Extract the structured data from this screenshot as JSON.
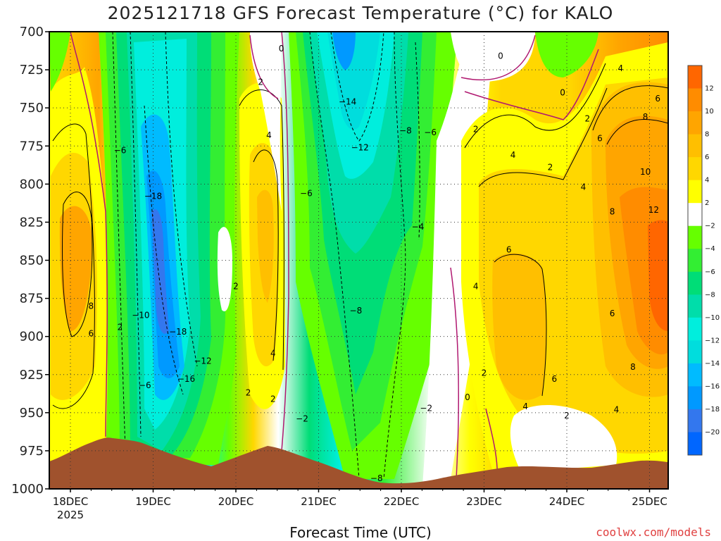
{
  "title": "2025121718 GFS Forecast Temperature (°C) for KALO",
  "xlabel": "Forecast Time (UTC)",
  "credit": "coolwx.com/models",
  "chart_data": {
    "type": "heatmap",
    "title": "2025121718 GFS Forecast Temperature (°C) for KALO",
    "xlabel": "Forecast Time (UTC)",
    "ylabel": "",
    "x_start": "2025-12-17 18Z",
    "x_ticks": [
      {
        "label": "18DEC",
        "year": "2025",
        "day": 18
      },
      {
        "label": "19DEC",
        "day": 19
      },
      {
        "label": "20DEC",
        "day": 20
      },
      {
        "label": "21DEC",
        "day": 21
      },
      {
        "label": "22DEC",
        "day": 22
      },
      {
        "label": "23DEC",
        "day": 23
      },
      {
        "label": "24DEC",
        "day": 24
      },
      {
        "label": "25DEC",
        "day": 25
      }
    ],
    "y_ticks": [
      "700",
      "725",
      "750",
      "775",
      "800",
      "825",
      "850",
      "875",
      "900",
      "925",
      "950",
      "975",
      "1000"
    ],
    "ylim": [
      1000,
      700
    ],
    "colorbar": {
      "labels": [
        "12",
        "10",
        "8",
        "6",
        "4",
        "2",
        "-2",
        "-4",
        "-6",
        "-8",
        "-10",
        "-12",
        "-14",
        "-16",
        "-18",
        "-20"
      ],
      "colors": [
        "#ff6600",
        "#ff8c00",
        "#ffa500",
        "#ffbf00",
        "#ffd700",
        "#ffff00",
        "#ffffff",
        "#66ff00",
        "#33ee33",
        "#00dd77",
        "#00ddaa",
        "#00eedd",
        "#00dddd",
        "#00bbff",
        "#0099ff",
        "#3377ee",
        "#0066ff"
      ]
    },
    "ground_color": "#a0522d",
    "contour_labels": [
      {
        "text": "0",
        "day": 20.55,
        "p": 711
      },
      {
        "text": "0",
        "day": 23.2,
        "p": 716
      },
      {
        "text": "0",
        "day": 23.95,
        "p": 740
      },
      {
        "text": "0",
        "day": 22.8,
        "p": 940
      },
      {
        "text": "2",
        "day": 20.3,
        "p": 733
      },
      {
        "text": "2",
        "day": 22.9,
        "p": 764
      },
      {
        "text": "2",
        "day": 23.8,
        "p": 789
      },
      {
        "text": "2",
        "day": 24.25,
        "p": 757
      },
      {
        "text": "2",
        "day": 18.6,
        "p": 894
      },
      {
        "text": "2",
        "day": 20.0,
        "p": 867
      },
      {
        "text": "2",
        "day": 20.15,
        "p": 937
      },
      {
        "text": "2",
        "day": 20.45,
        "p": 941
      },
      {
        "text": "2",
        "day": 23.0,
        "p": 924
      },
      {
        "text": "2",
        "day": 24.0,
        "p": 952
      },
      {
        "text": "-2",
        "day": 20.8,
        "p": 954
      },
      {
        "text": "-2",
        "day": 22.3,
        "p": 947
      },
      {
        "text": "4",
        "day": 20.4,
        "p": 768
      },
      {
        "text": "4",
        "day": 20.45,
        "p": 911
      },
      {
        "text": "4",
        "day": 23.35,
        "p": 781
      },
      {
        "text": "4",
        "day": 24.2,
        "p": 802
      },
      {
        "text": "4",
        "day": 22.9,
        "p": 867
      },
      {
        "text": "4",
        "day": 23.5,
        "p": 946
      },
      {
        "text": "4",
        "day": 24.6,
        "p": 948
      },
      {
        "text": "4",
        "day": 24.65,
        "p": 724
      },
      {
        "text": "6",
        "day": 18.25,
        "p": 898
      },
      {
        "text": "6",
        "day": 23.3,
        "p": 843
      },
      {
        "text": "6",
        "day": 23.85,
        "p": 928
      },
      {
        "text": "6",
        "day": 24.4,
        "p": 770
      },
      {
        "text": "6",
        "day": 24.55,
        "p": 885
      },
      {
        "text": "6",
        "day": 25.1,
        "p": 744
      },
      {
        "text": "8",
        "day": 18.25,
        "p": 880
      },
      {
        "text": "8",
        "day": 24.55,
        "p": 818
      },
      {
        "text": "8",
        "day": 24.8,
        "p": 920
      },
      {
        "text": "8",
        "day": 24.95,
        "p": 756
      },
      {
        "text": "10",
        "day": 24.95,
        "p": 792
      },
      {
        "text": "12",
        "day": 25.05,
        "p": 817
      },
      {
        "text": "-4",
        "day": 22.2,
        "p": 828
      },
      {
        "text": "-6",
        "day": 18.6,
        "p": 778
      },
      {
        "text": "-6",
        "day": 20.85,
        "p": 806
      },
      {
        "text": "-6",
        "day": 22.35,
        "p": 766
      },
      {
        "text": "-6",
        "day": 18.9,
        "p": 932
      },
      {
        "text": "-8",
        "day": 22.05,
        "p": 765
      },
      {
        "text": "-8",
        "day": 21.45,
        "p": 883
      },
      {
        "text": "-8",
        "day": 21.7,
        "p": 993
      },
      {
        "text": "-10",
        "day": 18.85,
        "p": 886
      },
      {
        "text": "-12",
        "day": 21.5,
        "p": 776
      },
      {
        "text": "-12",
        "day": 19.6,
        "p": 916
      },
      {
        "text": "-14",
        "day": 21.35,
        "p": 746
      },
      {
        "text": "-16",
        "day": 19.4,
        "p": 928
      },
      {
        "text": "-18",
        "day": 19.0,
        "p": 808
      },
      {
        "text": "-18",
        "day": 19.3,
        "p": 897
      }
    ]
  }
}
